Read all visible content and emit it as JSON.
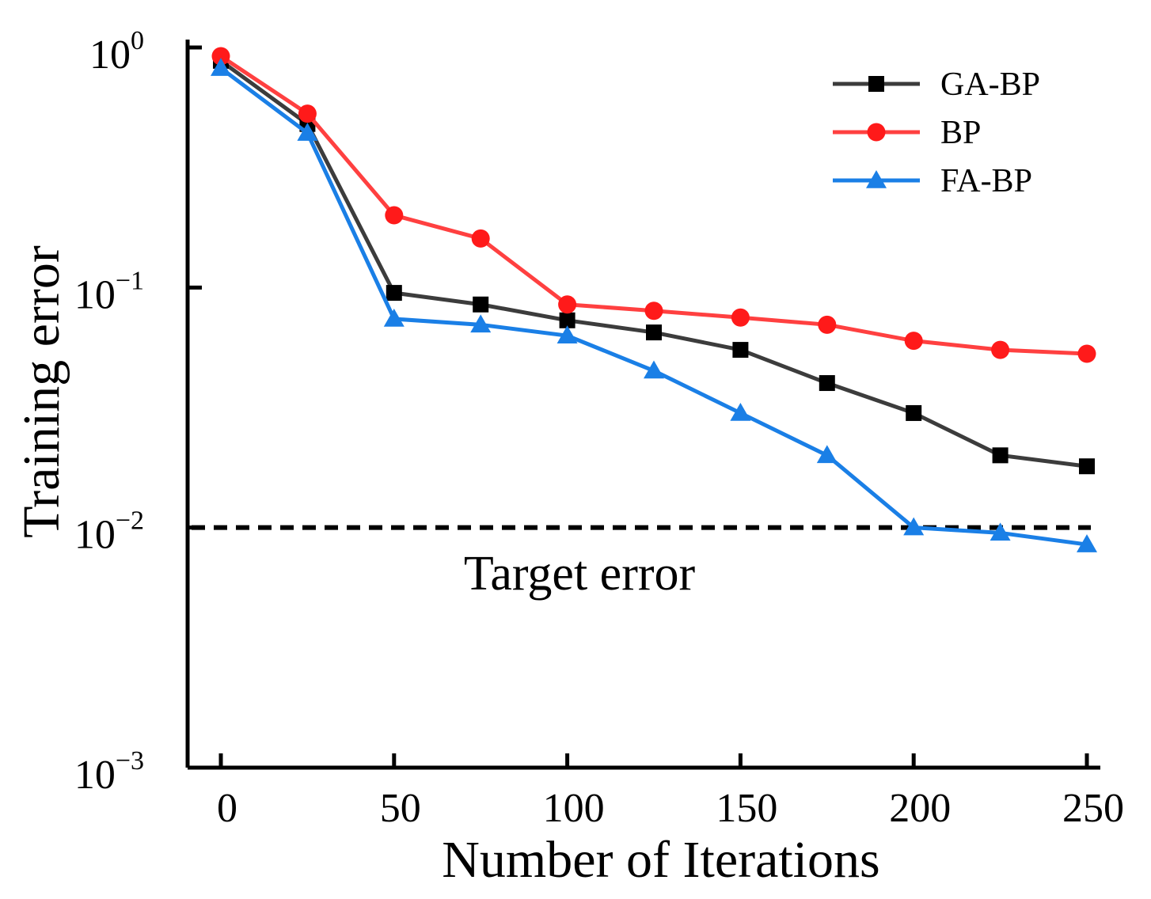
{
  "chart_data": {
    "type": "line",
    "xlabel": "Number of Iterations",
    "ylabel": "Training error",
    "yscale": "log",
    "xlim": [
      0,
      250
    ],
    "ylim": [
      0.001,
      1
    ],
    "x": [
      0,
      25,
      50,
      75,
      100,
      125,
      150,
      175,
      200,
      225,
      250
    ],
    "xticks": [
      0,
      50,
      100,
      150,
      200,
      250
    ],
    "xtick_labels": [
      "0",
      "50",
      "100",
      "150",
      "200",
      "250"
    ],
    "yticks": [
      {
        "value": 1,
        "base": "10",
        "exp": "0"
      },
      {
        "value": 0.1,
        "base": "10",
        "exp": "−1"
      },
      {
        "value": 0.01,
        "base": "10",
        "exp": "−2"
      },
      {
        "value": 0.001,
        "base": "10",
        "exp": "−3"
      }
    ],
    "series": [
      {
        "name": "GA-BP",
        "color": "#3c3c3c",
        "marker": "square",
        "marker_color": "#000000",
        "values": [
          0.88,
          0.48,
          0.095,
          0.085,
          0.073,
          0.065,
          0.055,
          0.04,
          0.03,
          0.02,
          0.018
        ]
      },
      {
        "name": "BP",
        "color": "#ff4040",
        "marker": "circle",
        "marker_color": "#ff1a1a",
        "values": [
          0.92,
          0.53,
          0.2,
          0.16,
          0.085,
          0.08,
          0.075,
          0.07,
          0.06,
          0.055,
          0.053
        ]
      },
      {
        "name": "FA-BP",
        "color": "#1a7fe6",
        "marker": "triangle",
        "marker_color": "#1a7fe6",
        "values": [
          0.82,
          0.44,
          0.074,
          0.07,
          0.063,
          0.045,
          0.03,
          0.02,
          0.01,
          0.0095,
          0.0085
        ]
      }
    ],
    "target": {
      "value": 0.01,
      "label": "Target error",
      "style": "dashed",
      "color": "#000000"
    },
    "legend_position": "top-right",
    "grid": false
  }
}
